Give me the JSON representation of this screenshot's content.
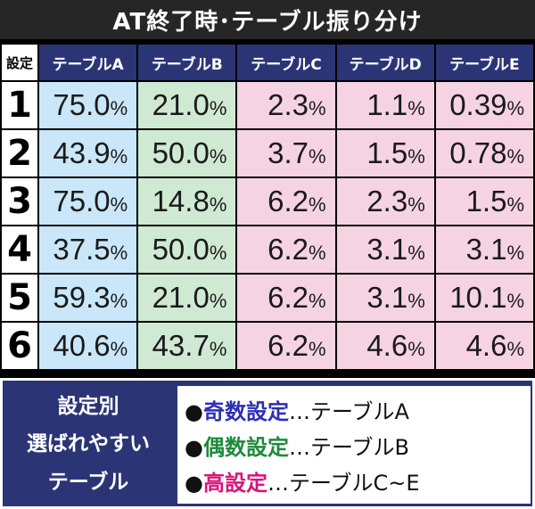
{
  "title": "AT終了時･テーブル振り分け",
  "table": {
    "setting_header": "設定",
    "columns": [
      "テーブルA",
      "テーブルB",
      "テーブルC",
      "テーブルD",
      "テーブルE"
    ],
    "pct_unit": "%",
    "rows": [
      {
        "setting": "1",
        "values": [
          "75.0",
          "21.0",
          "2.3",
          "1.1",
          "0.39"
        ]
      },
      {
        "setting": "2",
        "values": [
          "43.9",
          "50.0",
          "3.7",
          "1.5",
          "0.78"
        ]
      },
      {
        "setting": "3",
        "values": [
          "75.0",
          "14.8",
          "6.2",
          "2.3",
          "1.5"
        ]
      },
      {
        "setting": "4",
        "values": [
          "37.5",
          "50.0",
          "6.2",
          "3.1",
          "3.1"
        ]
      },
      {
        "setting": "5",
        "values": [
          "59.3",
          "21.0",
          "6.2",
          "3.1",
          "10.1"
        ]
      },
      {
        "setting": "6",
        "values": [
          "40.6",
          "43.7",
          "6.2",
          "4.6",
          "4.6"
        ]
      }
    ]
  },
  "note": {
    "heading_lines": [
      "設定別",
      "選ばれやすい",
      "テーブル"
    ],
    "bullet": "●",
    "items": [
      {
        "key": "奇数設定",
        "rest": "…テーブルA",
        "color": "#2b2fb8"
      },
      {
        "key": "偶数設定",
        "rest": "…テーブルB",
        "color": "#1f8a3a"
      },
      {
        "key": "高設定",
        "rest": "…テーブルC~E",
        "color": "#d6157a"
      }
    ]
  },
  "colors": {
    "header_navy": "#2b3576",
    "col_a": "#c9e7f8",
    "col_b": "#cfe9d3",
    "col_cde": "#f6d3e2"
  }
}
